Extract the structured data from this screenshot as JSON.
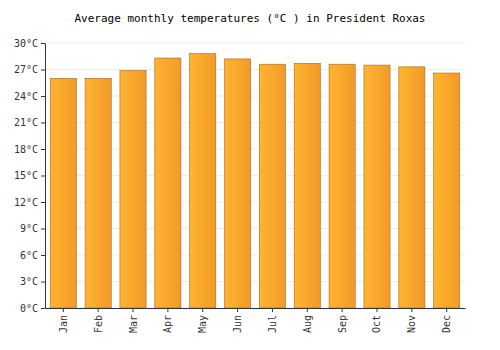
{
  "chart_data": {
    "type": "bar",
    "title": "Average monthly temperatures (°C ) in President Roxas",
    "categories": [
      "Jan",
      "Feb",
      "Mar",
      "Apr",
      "May",
      "Jun",
      "Jul",
      "Aug",
      "Sep",
      "Oct",
      "Nov",
      "Dec"
    ],
    "values": [
      26.0,
      26.0,
      26.9,
      28.3,
      28.8,
      28.2,
      27.6,
      27.7,
      27.6,
      27.5,
      27.3,
      26.6
    ],
    "color": "#ffa22b",
    "ylim": [
      0,
      30
    ],
    "yticks": [
      {
        "value": 0,
        "label": "0°C"
      },
      {
        "value": 3,
        "label": "3°C"
      },
      {
        "value": 6,
        "label": "6°C"
      },
      {
        "value": 9,
        "label": "9°C"
      },
      {
        "value": 12,
        "label": "12°C"
      },
      {
        "value": 15,
        "label": "15°C"
      },
      {
        "value": 18,
        "label": "18°C"
      },
      {
        "value": 21,
        "label": "21°C"
      },
      {
        "value": 24,
        "label": "24°C"
      },
      {
        "value": 27,
        "label": "27°C"
      },
      {
        "value": 30,
        "label": "30°C"
      }
    ],
    "grid": true
  }
}
